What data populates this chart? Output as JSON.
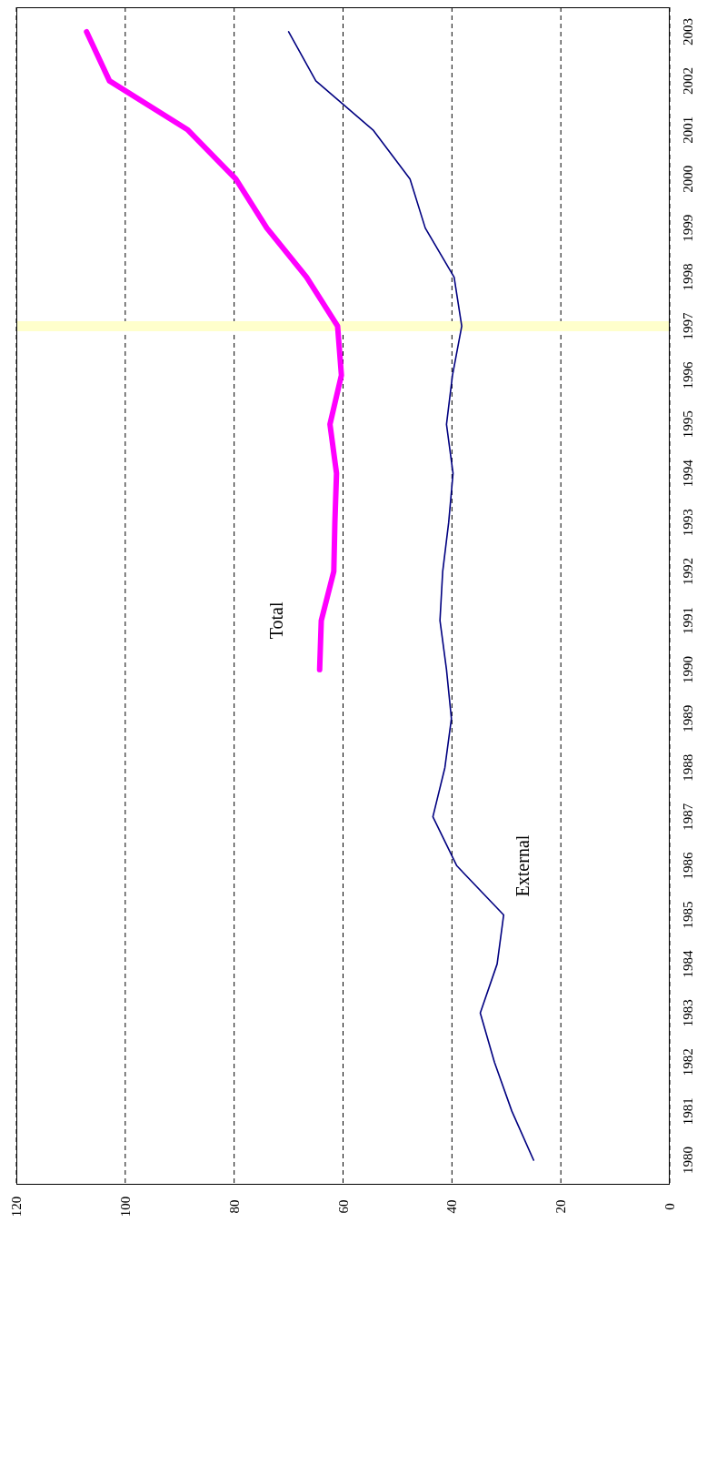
{
  "chart_data": {
    "type": "line",
    "orientation": "horizontal",
    "categories": [
      "2003",
      "2002",
      "2001",
      "2000",
      "1999",
      "1998",
      "1997",
      "1996",
      "1995",
      "1994",
      "1993",
      "1992",
      "1991",
      "1990",
      "1989",
      "1988",
      "1987",
      "1986",
      "1985",
      "1984",
      "1983",
      "1982",
      "1981",
      "1980"
    ],
    "series": [
      {
        "name": "External",
        "color": "#000080",
        "values": [
          70.0,
          65.0,
          54.5,
          47.7,
          44.9,
          39.6,
          38.2,
          39.9,
          41.0,
          39.8,
          40.6,
          41.7,
          42.2,
          41.0,
          40.1,
          41.3,
          43.5,
          39.1,
          30.5,
          31.7,
          34.8,
          32.2,
          29.0,
          25.0
        ]
      },
      {
        "name": "Total",
        "color": "#ff00ff",
        "values": [
          107.1,
          102.9,
          88.5,
          79.7,
          74.0,
          66.7,
          61.0,
          60.3,
          62.4,
          61.2,
          61.5,
          61.7,
          64.0,
          64.3,
          null,
          null,
          null,
          null,
          null,
          null,
          null,
          null,
          null,
          null
        ]
      }
    ],
    "xlim": [
      120,
      0
    ],
    "xticks": [
      0,
      20,
      40,
      60,
      80,
      100,
      120
    ],
    "grid": "x",
    "legend": false,
    "marker": "none",
    "line_style": "solid",
    "ref_lines": [
      {
        "axis": "y",
        "value": "1997",
        "color": "#ffffcc"
      }
    ]
  }
}
